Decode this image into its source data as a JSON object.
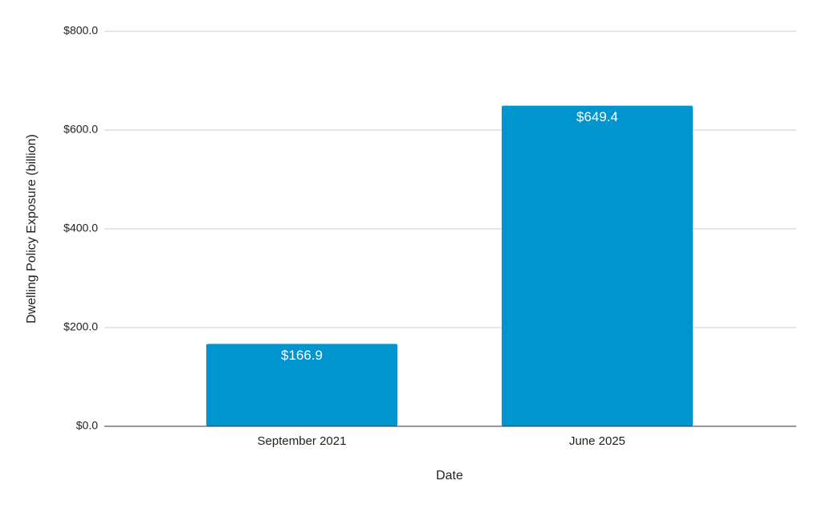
{
  "chart_data": {
    "type": "bar",
    "x_label": "Date",
    "y_label": "Dwelling Policy Exposure (billion)",
    "categories": [
      "September 2021",
      "June 2025"
    ],
    "values": [
      166.9,
      649.4
    ],
    "value_labels": [
      "$166.9",
      "$649.4"
    ],
    "color": "#0095cf",
    "ylim": [
      0,
      800
    ],
    "yticks": [
      {
        "value": 0,
        "label": "$0.0"
      },
      {
        "value": 200,
        "label": "$200.0"
      },
      {
        "value": 400,
        "label": "$400.0"
      },
      {
        "value": 600,
        "label": "$600.0"
      },
      {
        "value": 800,
        "label": "$800.0"
      }
    ],
    "grid": true
  }
}
